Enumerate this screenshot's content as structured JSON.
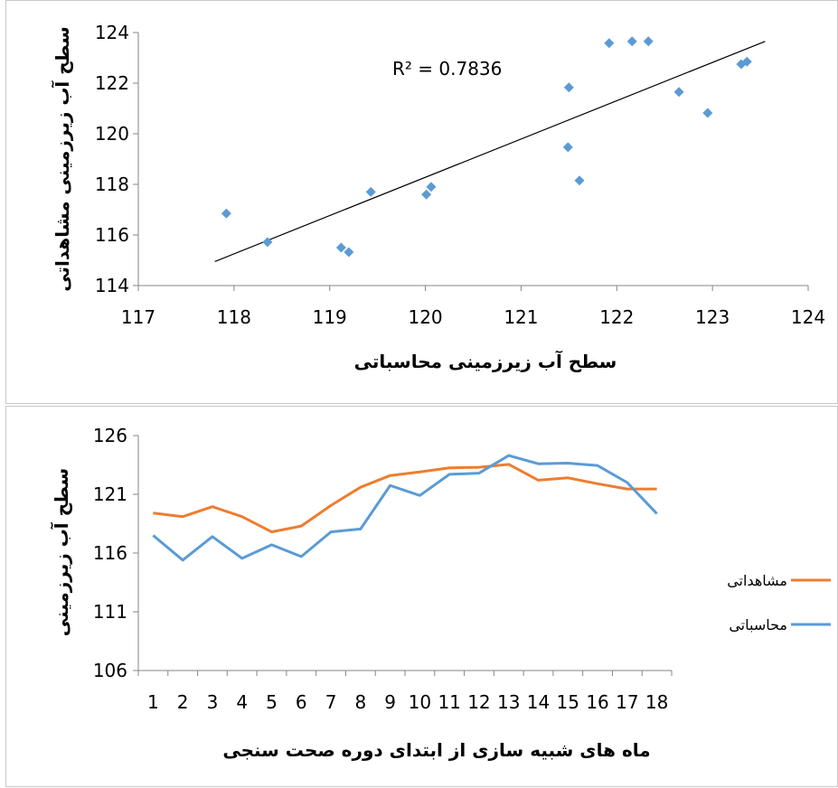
{
  "chart_data": [
    {
      "type": "scatter",
      "xlabel": "سطح آب زیرزمینی محاسباتی",
      "ylabel": "سطح آب زیرزمینی مشاهداتی",
      "annotation": "R² = 0.7836",
      "xlim": [
        117,
        124
      ],
      "ylim": [
        114,
        124
      ],
      "xticks": [
        "117",
        "118",
        "119",
        "120",
        "121",
        "122",
        "123",
        "124"
      ],
      "yticks": [
        "114",
        "116",
        "118",
        "120",
        "122",
        "124"
      ],
      "grid": false,
      "marker_color": "#5B9BD5",
      "trendline_color": "#000000",
      "trendline": {
        "x": [
          117.8,
          123.55
        ],
        "y": [
          114.95,
          123.65
        ]
      },
      "points": [
        {
          "x": 117.92,
          "y": 116.85
        },
        {
          "x": 118.35,
          "y": 115.72
        },
        {
          "x": 119.12,
          "y": 115.5
        },
        {
          "x": 119.2,
          "y": 115.32
        },
        {
          "x": 119.43,
          "y": 117.7
        },
        {
          "x": 120.01,
          "y": 117.6
        },
        {
          "x": 120.06,
          "y": 117.9
        },
        {
          "x": 121.49,
          "y": 119.47
        },
        {
          "x": 121.5,
          "y": 121.83
        },
        {
          "x": 121.61,
          "y": 118.15
        },
        {
          "x": 121.92,
          "y": 123.58
        },
        {
          "x": 122.16,
          "y": 123.65
        },
        {
          "x": 122.33,
          "y": 123.65
        },
        {
          "x": 122.65,
          "y": 121.65
        },
        {
          "x": 122.95,
          "y": 120.82
        },
        {
          "x": 123.3,
          "y": 122.75
        },
        {
          "x": 123.36,
          "y": 122.85
        }
      ]
    },
    {
      "type": "line",
      "xlabel": "ماه های شبیه سازی از ابتدای دوره صحت سنجی",
      "ylabel": "سطح آب زیرزمینی",
      "ylim": [
        106,
        126
      ],
      "yticks": [
        "106",
        "111",
        "116",
        "121",
        "126"
      ],
      "categories": [
        "1",
        "2",
        "3",
        "4",
        "5",
        "6",
        "7",
        "8",
        "9",
        "10",
        "11",
        "12",
        "13",
        "14",
        "15",
        "16",
        "17",
        "18"
      ],
      "grid": false,
      "legend_position": "right",
      "series": [
        {
          "name": "مشاهداتی",
          "color": "#ED7D31",
          "values": [
            119.4,
            119.1,
            119.95,
            119.1,
            117.8,
            118.3,
            120.05,
            121.6,
            122.6,
            122.9,
            123.25,
            123.3,
            123.55,
            122.2,
            122.4,
            121.9,
            121.45,
            121.45
          ]
        },
        {
          "name": "محاسباتی",
          "color": "#5B9BD5",
          "values": [
            117.5,
            115.4,
            117.4,
            115.55,
            116.7,
            115.7,
            117.8,
            118.05,
            121.75,
            120.9,
            122.7,
            122.8,
            124.3,
            123.6,
            123.65,
            123.45,
            122.0,
            119.35
          ]
        }
      ]
    }
  ]
}
